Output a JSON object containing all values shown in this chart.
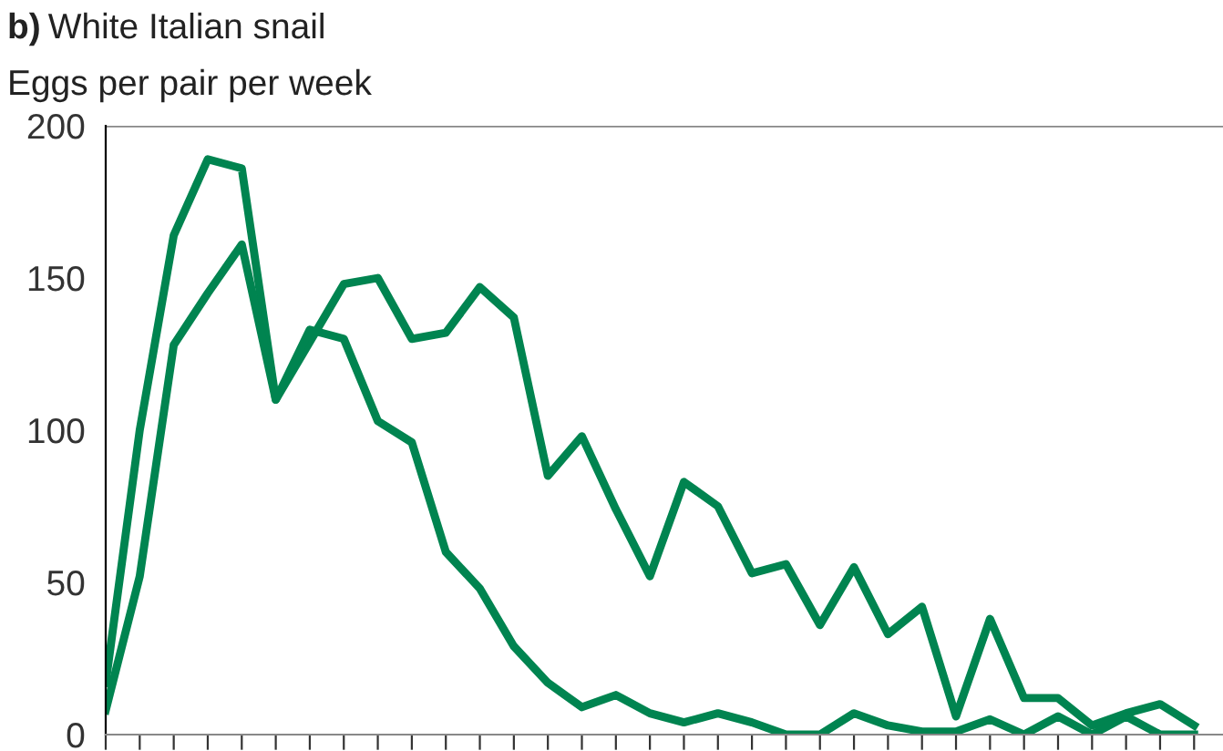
{
  "chart_data": {
    "type": "line",
    "title": "b) White Italian snail",
    "ylabel": "Eggs per pair per week",
    "categories": [
      null,
      null,
      null,
      null,
      null,
      null,
      null,
      null,
      null,
      null,
      null,
      null,
      null,
      null,
      null,
      null,
      null,
      null,
      null,
      null,
      null,
      null,
      null,
      null,
      null,
      null,
      null,
      null,
      null,
      null,
      null,
      null,
      null
    ],
    "series": [
      {
        "color": "#008450",
        "values": [
          17,
          100,
          164,
          189,
          186,
          110,
          129,
          148,
          150,
          130,
          132,
          147,
          137,
          85,
          98,
          74,
          52,
          83,
          75,
          53,
          56,
          36,
          55,
          33,
          42,
          6,
          38,
          12,
          12,
          3,
          7,
          10,
          3
        ]
      },
      {
        "color": "#008450",
        "values": [
          8,
          52,
          128,
          145,
          161,
          110,
          133,
          130,
          103,
          96,
          60,
          48,
          29,
          17,
          9,
          13,
          7,
          4,
          7,
          4,
          0,
          0,
          7,
          3,
          1,
          1,
          5,
          0,
          6,
          0,
          6,
          0,
          0
        ]
      }
    ],
    "ylim": [
      0,
      200
    ],
    "yticks": [
      0,
      50,
      100,
      150,
      200
    ],
    "ref_lines": [
      {
        "axis": "y",
        "value": 200,
        "color": "#888888"
      }
    ],
    "grid": false,
    "legend": false,
    "marker": "none",
    "line_style": "solid"
  }
}
